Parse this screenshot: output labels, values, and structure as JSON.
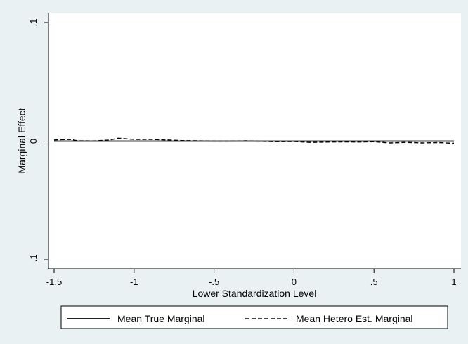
{
  "chart_data": {
    "type": "line",
    "title": "",
    "xlabel": "Lower Standardization Level",
    "ylabel": "Marginal Effect",
    "xlim": [
      -1.5,
      1
    ],
    "ylim": [
      -0.1,
      0.1
    ],
    "x_ticks": [
      -1.5,
      -1,
      -0.5,
      0,
      0.5,
      1
    ],
    "x_tick_labels": [
      "-1.5",
      "-1",
      "-.5",
      "0",
      ".5",
      "1"
    ],
    "y_ticks": [
      -0.1,
      0,
      0.1
    ],
    "y_tick_labels": [
      "-.1",
      "0",
      ".1"
    ],
    "grid": false,
    "legend_position": "bottom",
    "series": [
      {
        "name": "Mean True Marginal",
        "style": "solid",
        "color": "#000000",
        "x": [
          -1.5,
          1
        ],
        "y": [
          0,
          0
        ]
      },
      {
        "name": "Mean Hetero Est. Marginal",
        "style": "dashed",
        "color": "#000000",
        "x": [
          -1.5,
          -1.4,
          -1.35,
          -1.25,
          -1.15,
          -1.1,
          -1.0,
          -0.9,
          -0.8,
          -0.7,
          -0.6,
          -0.5,
          -0.4,
          -0.3,
          -0.2,
          -0.1,
          0.0,
          0.1,
          0.2,
          0.3,
          0.4,
          0.5,
          0.6,
          0.7,
          0.8,
          0.9,
          1.0
        ],
        "y": [
          0.001,
          0.0015,
          0.0003,
          0.0002,
          0.001,
          0.0025,
          0.0015,
          0.0015,
          0.001,
          0.0005,
          0.0003,
          0.0,
          0.0,
          0.0003,
          -0.0002,
          -0.0005,
          -0.0003,
          -0.001,
          -0.0008,
          -0.0006,
          -0.0007,
          -0.0005,
          -0.0015,
          -0.001,
          -0.0015,
          -0.0012,
          -0.0018
        ]
      }
    ]
  }
}
